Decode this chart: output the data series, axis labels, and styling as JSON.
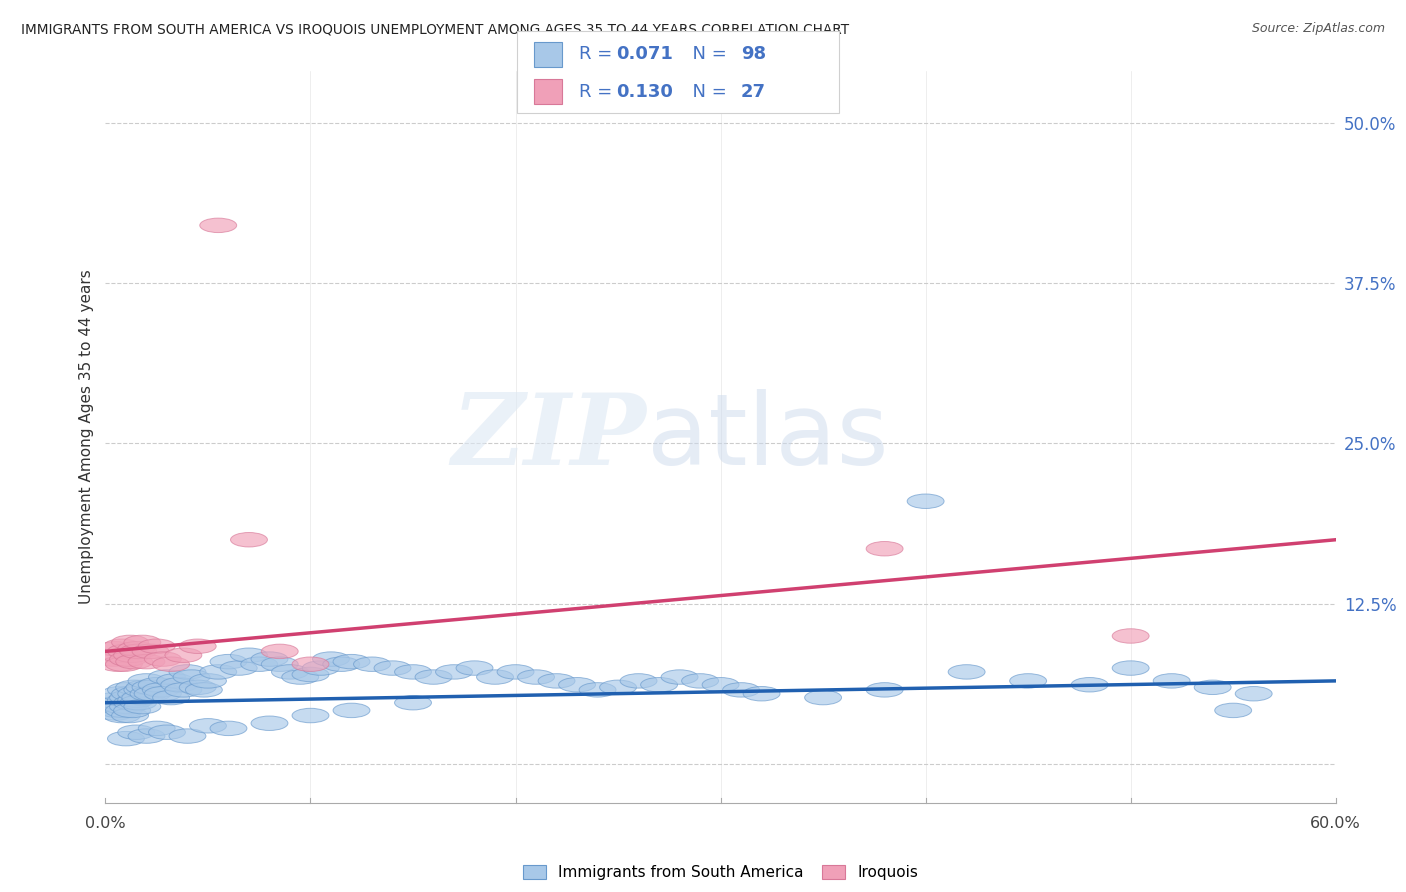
{
  "title": "IMMIGRANTS FROM SOUTH AMERICA VS IROQUOIS UNEMPLOYMENT AMONG AGES 35 TO 44 YEARS CORRELATION CHART",
  "source": "Source: ZipAtlas.com",
  "ylabel": "Unemployment Among Ages 35 to 44 years",
  "ytick_values": [
    0.0,
    0.125,
    0.25,
    0.375,
    0.5
  ],
  "ytick_labels": [
    "",
    "12.5%",
    "25.0%",
    "37.5%",
    "50.0%"
  ],
  "xlim": [
    0.0,
    0.6
  ],
  "ylim": [
    -0.03,
    0.54
  ],
  "legend_blue_R": "0.071",
  "legend_blue_N": "98",
  "legend_pink_R": "0.130",
  "legend_pink_N": "27",
  "blue_fill": "#a8c8e8",
  "pink_fill": "#f0a0b8",
  "blue_edge": "#6899cc",
  "pink_edge": "#d87898",
  "blue_line": "#2060b0",
  "pink_line": "#d04070",
  "blue_trend_x": [
    0.0,
    0.6
  ],
  "blue_trend_y": [
    0.048,
    0.065
  ],
  "pink_trend_x": [
    0.0,
    0.6
  ],
  "pink_trend_y": [
    0.088,
    0.175
  ],
  "blue_x": [
    0.003,
    0.004,
    0.005,
    0.006,
    0.007,
    0.007,
    0.008,
    0.008,
    0.009,
    0.01,
    0.01,
    0.011,
    0.011,
    0.012,
    0.012,
    0.013,
    0.013,
    0.014,
    0.015,
    0.015,
    0.016,
    0.017,
    0.018,
    0.018,
    0.019,
    0.02,
    0.021,
    0.022,
    0.023,
    0.025,
    0.027,
    0.028,
    0.03,
    0.032,
    0.034,
    0.036,
    0.038,
    0.04,
    0.042,
    0.045,
    0.048,
    0.05,
    0.055,
    0.06,
    0.065,
    0.07,
    0.075,
    0.08,
    0.085,
    0.09,
    0.095,
    0.1,
    0.105,
    0.11,
    0.115,
    0.12,
    0.13,
    0.14,
    0.15,
    0.16,
    0.17,
    0.18,
    0.19,
    0.2,
    0.21,
    0.22,
    0.23,
    0.24,
    0.25,
    0.26,
    0.27,
    0.28,
    0.29,
    0.3,
    0.31,
    0.32,
    0.35,
    0.38,
    0.4,
    0.42,
    0.45,
    0.48,
    0.5,
    0.52,
    0.54,
    0.56,
    0.01,
    0.015,
    0.02,
    0.025,
    0.03,
    0.04,
    0.05,
    0.06,
    0.08,
    0.1,
    0.12,
    0.15,
    0.55
  ],
  "blue_y": [
    0.05,
    0.045,
    0.04,
    0.042,
    0.048,
    0.055,
    0.038,
    0.045,
    0.042,
    0.05,
    0.058,
    0.045,
    0.052,
    0.038,
    0.055,
    0.048,
    0.042,
    0.06,
    0.05,
    0.055,
    0.048,
    0.052,
    0.058,
    0.045,
    0.06,
    0.065,
    0.055,
    0.06,
    0.055,
    0.062,
    0.058,
    0.055,
    0.068,
    0.052,
    0.065,
    0.062,
    0.058,
    0.072,
    0.068,
    0.06,
    0.058,
    0.065,
    0.072,
    0.08,
    0.075,
    0.085,
    0.078,
    0.082,
    0.078,
    0.072,
    0.068,
    0.07,
    0.075,
    0.082,
    0.078,
    0.08,
    0.078,
    0.075,
    0.072,
    0.068,
    0.072,
    0.075,
    0.068,
    0.072,
    0.068,
    0.065,
    0.062,
    0.058,
    0.06,
    0.065,
    0.062,
    0.068,
    0.065,
    0.062,
    0.058,
    0.055,
    0.052,
    0.058,
    0.205,
    0.072,
    0.065,
    0.062,
    0.075,
    0.065,
    0.06,
    0.055,
    0.02,
    0.025,
    0.022,
    0.028,
    0.025,
    0.022,
    0.03,
    0.028,
    0.032,
    0.038,
    0.042,
    0.048,
    0.042
  ],
  "pink_x": [
    0.004,
    0.005,
    0.006,
    0.007,
    0.008,
    0.009,
    0.01,
    0.011,
    0.012,
    0.013,
    0.014,
    0.015,
    0.016,
    0.018,
    0.02,
    0.022,
    0.025,
    0.028,
    0.032,
    0.038,
    0.045,
    0.055,
    0.07,
    0.085,
    0.1,
    0.38,
    0.5
  ],
  "pink_y": [
    0.082,
    0.09,
    0.078,
    0.085,
    0.092,
    0.078,
    0.088,
    0.082,
    0.095,
    0.085,
    0.08,
    0.09,
    0.088,
    0.095,
    0.08,
    0.088,
    0.092,
    0.082,
    0.078,
    0.085,
    0.092,
    0.42,
    0.175,
    0.088,
    0.078,
    0.168,
    0.1
  ]
}
